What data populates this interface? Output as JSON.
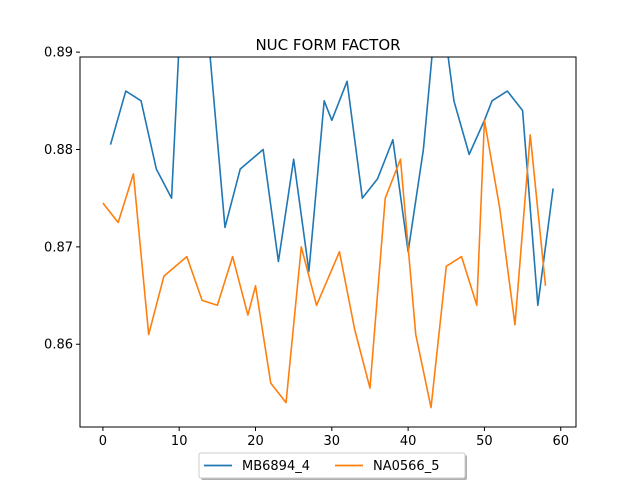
{
  "chart_data": {
    "type": "line",
    "title": "NUC FORM FACTOR",
    "xlabel": "",
    "ylabel": "",
    "xlim": [
      -3,
      62
    ],
    "ylim": [
      0.8515,
      0.8895
    ],
    "xticks": [
      0,
      10,
      20,
      30,
      40,
      50,
      60
    ],
    "yticks": [
      0.86,
      0.87,
      0.88,
      0.89
    ],
    "ytick_labels": [
      "0.86",
      "0.87",
      "0.88",
      "0.89"
    ],
    "grid": false,
    "legend_position": "lower-center-outside",
    "series": [
      {
        "name": "MB6894_4",
        "color": "#1f77b4",
        "x": [
          1,
          3,
          5,
          7,
          9,
          10,
          12,
          14,
          16,
          18,
          21,
          23,
          25,
          27,
          29,
          30,
          32,
          34,
          36,
          38,
          40,
          42,
          44,
          46,
          48,
          50,
          51,
          53,
          55,
          57,
          59
        ],
        "y": [
          0.8805,
          0.886,
          0.885,
          0.878,
          0.875,
          0.891,
          0.8935,
          0.89,
          0.872,
          0.878,
          0.88,
          0.8685,
          0.879,
          0.8675,
          0.885,
          0.883,
          0.887,
          0.875,
          0.877,
          0.881,
          0.8695,
          0.88,
          0.897,
          0.885,
          0.8795,
          0.883,
          0.885,
          0.886,
          0.884,
          0.864,
          0.876
        ]
      },
      {
        "name": "NA0566_5",
        "color": "#ff7f0e",
        "x": [
          0,
          2,
          4,
          6,
          8,
          11,
          13,
          15,
          17,
          19,
          20,
          22,
          24,
          26,
          28,
          31,
          33,
          35,
          37,
          39,
          41,
          43,
          45,
          47,
          49,
          50,
          52,
          54,
          56,
          58
        ],
        "y": [
          0.8745,
          0.8725,
          0.8775,
          0.861,
          0.867,
          0.869,
          0.8645,
          0.864,
          0.869,
          0.863,
          0.866,
          0.856,
          0.854,
          0.87,
          0.864,
          0.8695,
          0.8615,
          0.8555,
          0.875,
          0.879,
          0.861,
          0.8535,
          0.868,
          0.869,
          0.864,
          0.883,
          0.874,
          0.862,
          0.8815,
          0.866
        ]
      }
    ]
  }
}
